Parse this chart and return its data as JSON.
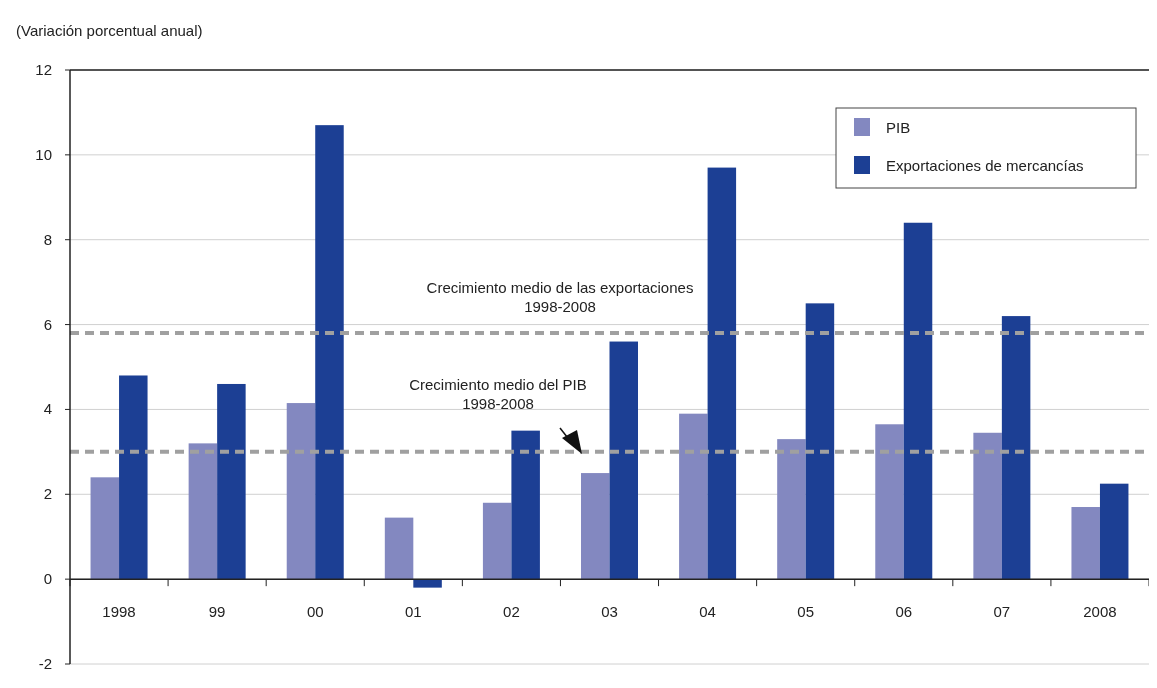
{
  "chart_data": {
    "type": "bar",
    "ylabel": "(Variación porcentual anual)",
    "categories": [
      "1998",
      "99",
      "00",
      "01",
      "02",
      "03",
      "04",
      "05",
      "06",
      "07",
      "2008"
    ],
    "series": [
      {
        "name": "PIB",
        "color": "#8388c0",
        "values": [
          2.4,
          3.2,
          4.15,
          1.45,
          1.8,
          2.5,
          3.9,
          3.3,
          3.65,
          3.45,
          1.7
        ]
      },
      {
        "name": "Exportaciones de mercancías",
        "color": "#1c3f94",
        "values": [
          4.8,
          4.6,
          10.7,
          -0.2,
          3.5,
          5.6,
          9.7,
          6.5,
          8.4,
          6.2,
          2.25
        ]
      }
    ],
    "ylim": [
      -2,
      12
    ],
    "yticks": [
      -2,
      0,
      2,
      4,
      6,
      8,
      10,
      12
    ],
    "grid": "y",
    "legend": "top right",
    "ref_lines": [
      {
        "axis": "y",
        "value": 5.8,
        "label": "Crecimiento medio de las exportaciones\n1998-2008",
        "color": "#a0a0a0",
        "line_style": "dashed"
      },
      {
        "axis": "y",
        "value": 3.0,
        "label": "Crecimiento medio del  PIB\n1998-2008",
        "color": "#a0a0a0",
        "line_style": "dashed"
      }
    ]
  }
}
